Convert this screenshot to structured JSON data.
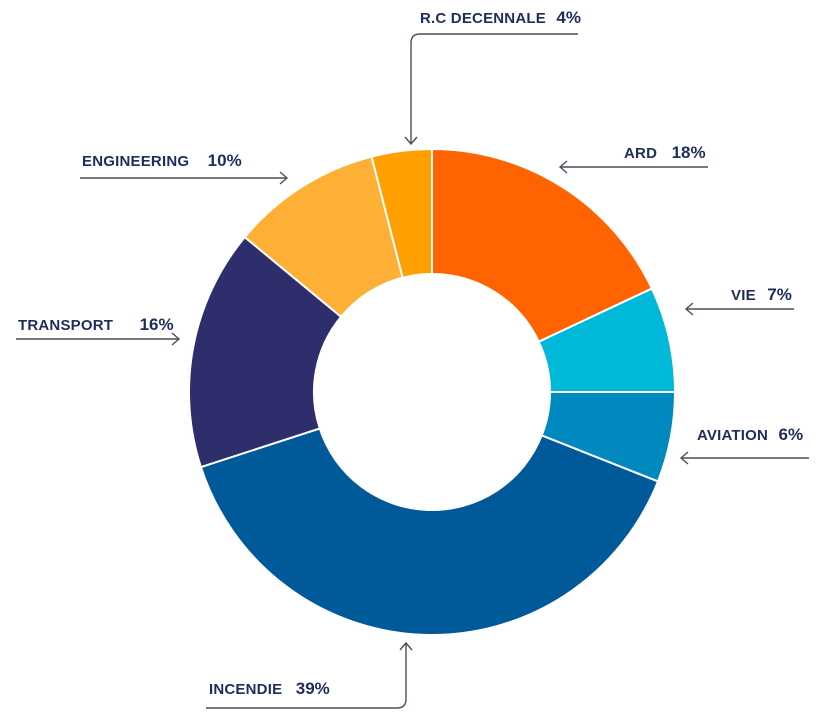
{
  "chart_data": {
    "type": "pie",
    "donut": true,
    "title": "",
    "legend": "none",
    "slices": [
      {
        "label": "ARD",
        "value": 18,
        "value_text": "18%",
        "color": "#ff6400"
      },
      {
        "label": "VIE",
        "value": 7,
        "value_text": "7%",
        "color": "#00b8d8"
      },
      {
        "label": "AVIATION",
        "value": 6,
        "value_text": "6%",
        "color": "#0089bf"
      },
      {
        "label": "INCENDIE",
        "value": 39,
        "value_text": "39%",
        "color": "#005a9a"
      },
      {
        "label": "TRANSPORT",
        "value": 16,
        "value_text": "16%",
        "color": "#2d2e6b"
      },
      {
        "label": "ENGINEERING",
        "value": 10,
        "value_text": "10%",
        "color": "#fdb035"
      },
      {
        "label": "R.C DECENNALE",
        "value": 4,
        "value_text": "4%",
        "color": "#ffa000"
      }
    ]
  }
}
